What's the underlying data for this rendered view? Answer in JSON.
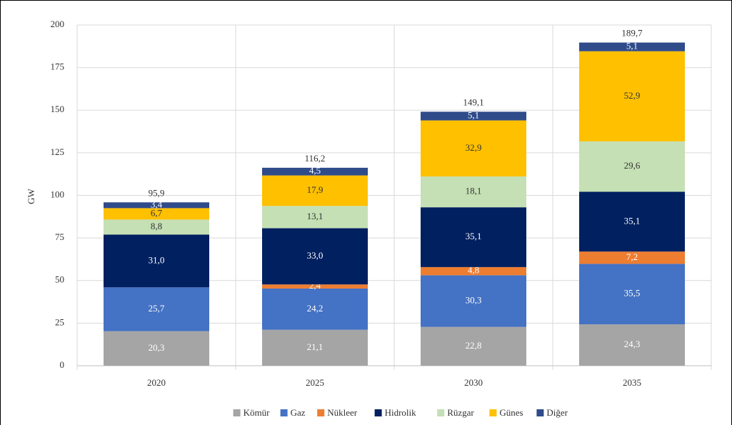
{
  "chart_data": {
    "type": "stacked_bar",
    "y_label": "GW",
    "categories": [
      "2020",
      "2025",
      "2030",
      "2035"
    ],
    "series": [
      {
        "name": "Kömür",
        "color": "#a5a5a5",
        "values": [
          20.3,
          21.1,
          22.8,
          24.3
        ],
        "value_labels": [
          "20,3",
          "21,1",
          "22,8",
          "24,3"
        ]
      },
      {
        "name": "Gaz",
        "color": "#4472c4",
        "values": [
          25.7,
          24.2,
          30.3,
          35.5
        ],
        "value_labels": [
          "25,7",
          "24,2",
          "30,3",
          "35,5"
        ]
      },
      {
        "name": "Nükleer",
        "color": "#ed7d31",
        "values": [
          0,
          2.4,
          4.8,
          7.2
        ],
        "value_labels": [
          null,
          "2,4",
          "4,8",
          "7,2"
        ]
      },
      {
        "name": "Hidrolik",
        "color": "#002060",
        "values": [
          31.0,
          33.0,
          35.1,
          35.1
        ],
        "value_labels": [
          "31,0",
          "33,0",
          "35,1",
          "35,1"
        ]
      },
      {
        "name": "Rüzgar",
        "color": "#c5e0b4",
        "values": [
          8.8,
          13.1,
          18.1,
          29.6
        ],
        "value_labels": [
          "8,8",
          "13,1",
          "18,1",
          "29,6"
        ]
      },
      {
        "name": "Günes",
        "color": "#ffc000",
        "values": [
          6.7,
          17.9,
          32.9,
          52.9
        ],
        "value_labels": [
          "6,7",
          "17,9",
          "32,9",
          "52,9"
        ]
      },
      {
        "name": "Diğer",
        "color": "#2f4b8a",
        "values": [
          3.4,
          4.5,
          5.1,
          5.1
        ],
        "value_labels": [
          "3,4",
          "4,5",
          "5,1",
          "5,1"
        ]
      }
    ],
    "totals": [
      95.9,
      116.2,
      149.1,
      189.7
    ],
    "total_labels": [
      "95,9",
      "116,2",
      "149,1",
      "189,7"
    ],
    "ylim": [
      0,
      200
    ],
    "yticks": [
      0,
      25,
      50,
      75,
      100,
      125,
      150,
      175,
      200
    ],
    "grid": true,
    "legend": "bottom"
  }
}
